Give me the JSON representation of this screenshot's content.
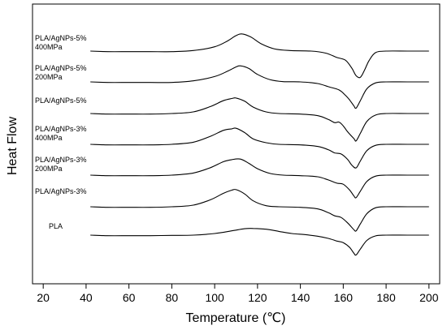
{
  "chart_data": {
    "type": "line",
    "xlabel": "Temperature (℃)",
    "ylabel": "Heat Flow",
    "xlim": [
      15,
      205
    ],
    "x_ticks": [
      20,
      40,
      60,
      80,
      100,
      120,
      140,
      160,
      180,
      200
    ],
    "grid": false,
    "line_color": "#000000",
    "series": [
      {
        "name": "PLA/AgNPs-5%\n400MPa",
        "x_start": 42,
        "points": [
          [
            42,
            0
          ],
          [
            50,
            -0.2
          ],
          [
            60,
            -0.2
          ],
          [
            70,
            -0.2
          ],
          [
            80,
            -0.2
          ],
          [
            90,
            0.2
          ],
          [
            100,
            1.6
          ],
          [
            106,
            3.8
          ],
          [
            110,
            5.8
          ],
          [
            113,
            6.4
          ],
          [
            117,
            5.2
          ],
          [
            122,
            2.6
          ],
          [
            128,
            0.8
          ],
          [
            135,
            0.2
          ],
          [
            145,
            0
          ],
          [
            152,
            -0.8
          ],
          [
            157,
            -2.4
          ],
          [
            161,
            -3.4
          ],
          [
            164,
            -6.4
          ],
          [
            166,
            -9.2
          ],
          [
            168,
            -9.8
          ],
          [
            170,
            -7.0
          ],
          [
            172,
            -3.6
          ],
          [
            175,
            -0.6
          ],
          [
            180,
            0
          ],
          [
            190,
            0
          ],
          [
            200,
            0
          ]
        ]
      },
      {
        "name": "PLA/AgNPs-5%\n200MPa",
        "x_start": 42,
        "points": [
          [
            42,
            0
          ],
          [
            50,
            -0.2
          ],
          [
            60,
            -0.2
          ],
          [
            70,
            -0.2
          ],
          [
            80,
            -0.2
          ],
          [
            90,
            0.4
          ],
          [
            100,
            2.0
          ],
          [
            106,
            4.0
          ],
          [
            110,
            5.6
          ],
          [
            112,
            6.0
          ],
          [
            116,
            5.0
          ],
          [
            120,
            2.8
          ],
          [
            126,
            0.8
          ],
          [
            132,
            0.1
          ],
          [
            140,
            0
          ],
          [
            148,
            -0.6
          ],
          [
            153,
            -1.8
          ],
          [
            158,
            -3.0
          ],
          [
            161,
            -5.0
          ],
          [
            163,
            -6.8
          ],
          [
            165,
            -9.0
          ],
          [
            166,
            -9.8
          ],
          [
            168,
            -7.0
          ],
          [
            171,
            -2.6
          ],
          [
            175,
            -0.4
          ],
          [
            180,
            0
          ],
          [
            190,
            0
          ],
          [
            200,
            0
          ]
        ]
      },
      {
        "name": "PLA/AgNPs-5%",
        "x_start": 42,
        "points": [
          [
            42,
            0
          ],
          [
            50,
            -0.2
          ],
          [
            60,
            -0.2
          ],
          [
            70,
            -0.2
          ],
          [
            80,
            0
          ],
          [
            90,
            0.6
          ],
          [
            98,
            2.6
          ],
          [
            104,
            4.8
          ],
          [
            108,
            5.6
          ],
          [
            110,
            5.8
          ],
          [
            114,
            4.6
          ],
          [
            118,
            2.4
          ],
          [
            124,
            0.6
          ],
          [
            130,
            0
          ],
          [
            140,
            -0.2
          ],
          [
            148,
            -0.8
          ],
          [
            153,
            -2.2
          ],
          [
            156,
            -3.4
          ],
          [
            158,
            -3.2
          ],
          [
            160,
            -4.6
          ],
          [
            162,
            -6.8
          ],
          [
            165,
            -9.4
          ],
          [
            166,
            -10.2
          ],
          [
            168,
            -7.4
          ],
          [
            171,
            -3.0
          ],
          [
            175,
            -0.6
          ],
          [
            180,
            0
          ],
          [
            190,
            0
          ],
          [
            200,
            0
          ]
        ]
      },
      {
        "name": "PLA/AgNPs-3%\n400MPa",
        "x_start": 42,
        "points": [
          [
            42,
            0
          ],
          [
            50,
            -0.2
          ],
          [
            60,
            -0.2
          ],
          [
            70,
            -0.2
          ],
          [
            80,
            0
          ],
          [
            90,
            0.8
          ],
          [
            98,
            3.0
          ],
          [
            104,
            5.2
          ],
          [
            108,
            5.8
          ],
          [
            110,
            6.0
          ],
          [
            114,
            4.4
          ],
          [
            118,
            2.0
          ],
          [
            124,
            0.6
          ],
          [
            130,
            0
          ],
          [
            140,
            -0.2
          ],
          [
            148,
            -0.8
          ],
          [
            153,
            -2.0
          ],
          [
            156,
            -3.2
          ],
          [
            159,
            -3.6
          ],
          [
            162,
            -5.6
          ],
          [
            164,
            -7.8
          ],
          [
            166,
            -8.8
          ],
          [
            168,
            -6.2
          ],
          [
            171,
            -2.4
          ],
          [
            175,
            -0.4
          ],
          [
            180,
            0
          ],
          [
            190,
            0
          ],
          [
            200,
            0
          ]
        ]
      },
      {
        "name": "PLA/AgNPs-3%\n200MPa",
        "x_start": 42,
        "points": [
          [
            42,
            0
          ],
          [
            50,
            -0.2
          ],
          [
            60,
            -0.2
          ],
          [
            70,
            -0.2
          ],
          [
            80,
            0
          ],
          [
            90,
            0.8
          ],
          [
            98,
            2.8
          ],
          [
            104,
            5.0
          ],
          [
            108,
            5.8
          ],
          [
            112,
            6.0
          ],
          [
            116,
            4.4
          ],
          [
            120,
            2.4
          ],
          [
            126,
            0.6
          ],
          [
            132,
            0
          ],
          [
            140,
            -0.2
          ],
          [
            148,
            -0.6
          ],
          [
            153,
            -1.8
          ],
          [
            157,
            -3.0
          ],
          [
            160,
            -3.4
          ],
          [
            163,
            -5.6
          ],
          [
            165,
            -7.8
          ],
          [
            166,
            -8.4
          ],
          [
            168,
            -6.0
          ],
          [
            171,
            -2.4
          ],
          [
            175,
            -0.4
          ],
          [
            180,
            0
          ],
          [
            190,
            0
          ],
          [
            200,
            0
          ]
        ]
      },
      {
        "name": "PLA/AgNPs-3%",
        "x_start": 42,
        "points": [
          [
            42,
            0
          ],
          [
            50,
            -0.2
          ],
          [
            60,
            -0.2
          ],
          [
            70,
            -0.2
          ],
          [
            80,
            0
          ],
          [
            90,
            0.6
          ],
          [
            98,
            2.6
          ],
          [
            104,
            5.0
          ],
          [
            108,
            6.2
          ],
          [
            110,
            6.4
          ],
          [
            114,
            4.8
          ],
          [
            118,
            2.2
          ],
          [
            124,
            0.4
          ],
          [
            130,
            0
          ],
          [
            140,
            -0.2
          ],
          [
            148,
            -0.8
          ],
          [
            153,
            -2.2
          ],
          [
            156,
            -3.4
          ],
          [
            159,
            -4.0
          ],
          [
            162,
            -6.0
          ],
          [
            165,
            -8.6
          ],
          [
            166,
            -9.0
          ],
          [
            168,
            -6.4
          ],
          [
            171,
            -2.6
          ],
          [
            175,
            -0.4
          ],
          [
            180,
            0
          ],
          [
            190,
            0
          ],
          [
            200,
            0
          ]
        ]
      },
      {
        "name": "PLA",
        "x_start": 42,
        "points": [
          [
            42,
            0
          ],
          [
            50,
            -0.2
          ],
          [
            60,
            -0.2
          ],
          [
            70,
            -0.2
          ],
          [
            80,
            -0.1
          ],
          [
            90,
            0
          ],
          [
            100,
            0.6
          ],
          [
            108,
            1.6
          ],
          [
            114,
            2.4
          ],
          [
            118,
            2.5
          ],
          [
            124,
            2.2
          ],
          [
            130,
            1.4
          ],
          [
            136,
            0.6
          ],
          [
            142,
            0.2
          ],
          [
            148,
            -0.4
          ],
          [
            153,
            -1.2
          ],
          [
            157,
            -2.2
          ],
          [
            160,
            -2.8
          ],
          [
            163,
            -4.6
          ],
          [
            165,
            -6.8
          ],
          [
            166,
            -7.4
          ],
          [
            168,
            -5.2
          ],
          [
            171,
            -2.0
          ],
          [
            175,
            -0.3
          ],
          [
            180,
            0
          ],
          [
            190,
            0
          ],
          [
            200,
            0
          ]
        ]
      }
    ]
  }
}
